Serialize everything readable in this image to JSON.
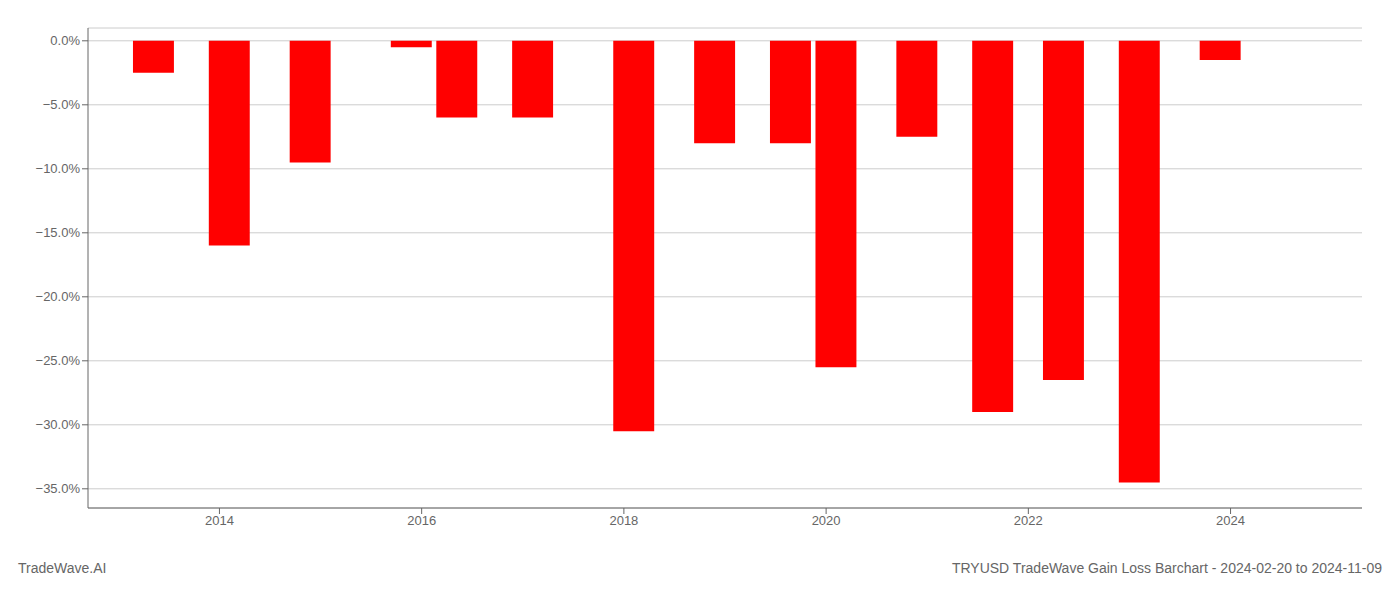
{
  "chart_data": {
    "type": "bar",
    "title": "TRYUSD TradeWave Gain Loss Barchart - 2024-02-20 to 2024-11-09",
    "annotations": [
      "TradeWave.AI"
    ],
    "x": [
      2013.35,
      2014.1,
      2014.9,
      2015.9,
      2016.35,
      2017.1,
      2018.1,
      2018.9,
      2019.65,
      2020.1,
      2020.9,
      2021.65,
      2022.35,
      2023.1,
      2023.9
    ],
    "values": [
      -2.5,
      -16.0,
      -9.5,
      -0.5,
      -6.0,
      -6.0,
      -30.5,
      -8.0,
      -8.0,
      -25.5,
      -7.5,
      -29.0,
      -26.5,
      -34.5,
      -1.5
    ],
    "color": "#ff0000",
    "xlim": [
      2012.7,
      2025.3
    ],
    "xticks": [
      2014,
      2016,
      2018,
      2020,
      2022,
      2024
    ],
    "ylim": [
      -36.5,
      1.0
    ],
    "yticks": [
      {
        "value": 0.0,
        "label": "0.0%"
      },
      {
        "value": -5.0,
        "label": "−5.0%"
      },
      {
        "value": -10.0,
        "label": "−10.0%"
      },
      {
        "value": -15.0,
        "label": "−15.0%"
      },
      {
        "value": -20.0,
        "label": "−20.0%"
      },
      {
        "value": -25.0,
        "label": "−25.0%"
      },
      {
        "value": -30.0,
        "label": "−30.0%"
      },
      {
        "value": -35.0,
        "label": "−35.0%"
      }
    ],
    "grid": true
  }
}
